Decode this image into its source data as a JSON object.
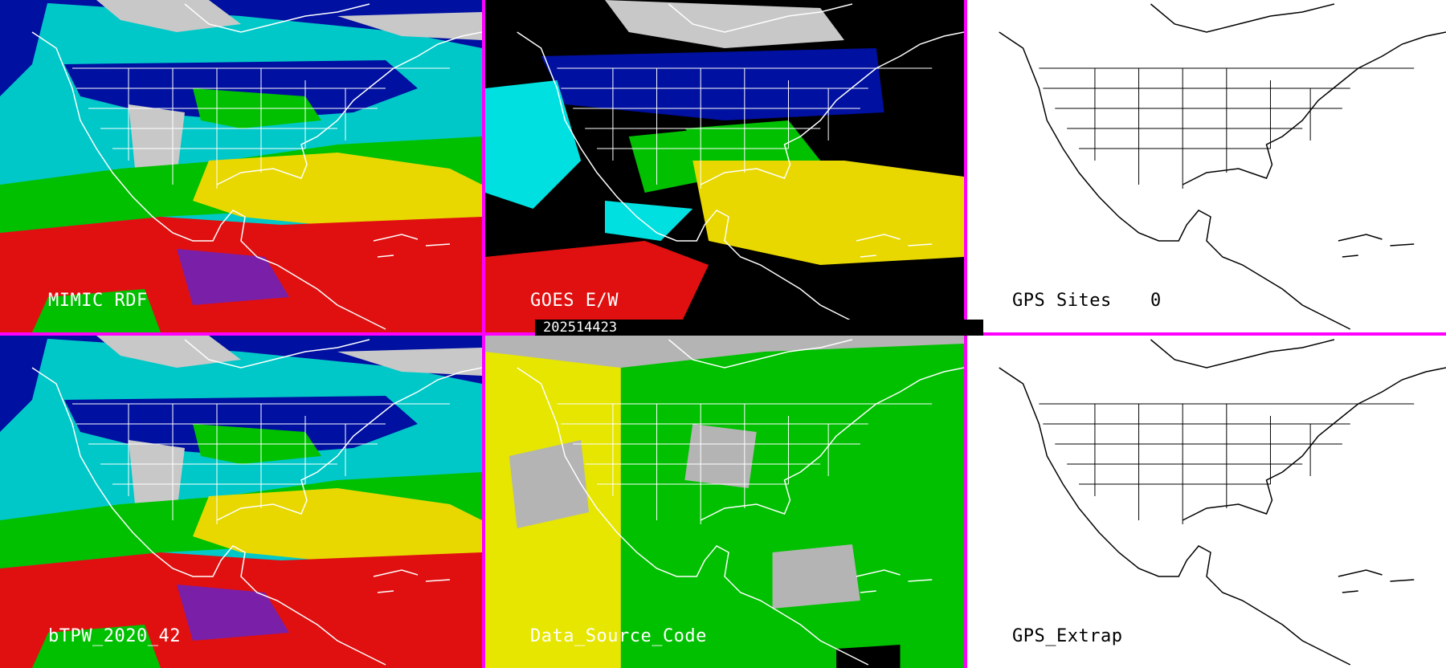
{
  "panels": [
    {
      "label": "MIMIC RDF",
      "background": "#00c8c8"
    },
    {
      "label": "GOES E/W",
      "background": "#000000"
    },
    {
      "label": "GPS Sites",
      "count": "0",
      "background": "#ffffff"
    },
    {
      "label": "bTPW_2020_42",
      "background": "#00c8c8"
    },
    {
      "label": "Data_Source_Code",
      "background": "#b4b4b4"
    },
    {
      "label": "GPS_Extrap",
      "background": "#ffffff"
    }
  ],
  "timestamp": "202514423",
  "colors": {
    "divider": "#ff00ff",
    "tpw_scale": [
      "#7a1fa8",
      "#e01010",
      "#e8d800",
      "#00c000",
      "#00e0e0",
      "#0010a0",
      "#c8c8c8"
    ],
    "source_codes": [
      "#e6e600",
      "#00c000",
      "#b4b4b4",
      "#000000"
    ]
  }
}
